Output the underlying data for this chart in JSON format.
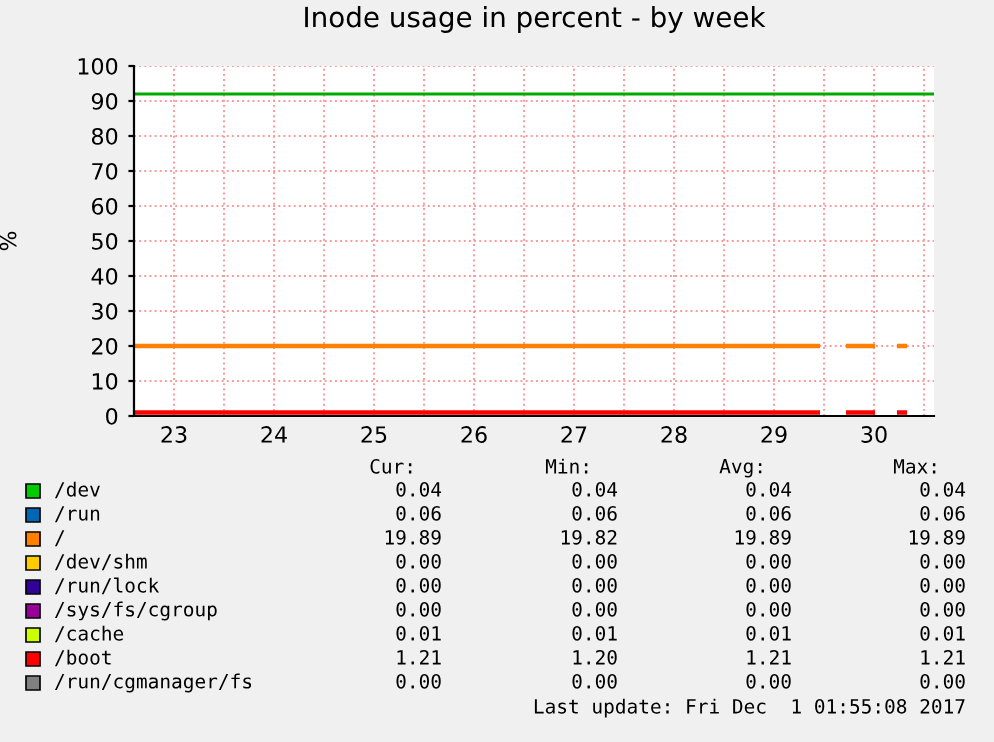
{
  "chart_data": {
    "type": "line",
    "title": "Inode usage in percent - by week",
    "ylabel": "%",
    "x": [
      23.1,
      29.96,
      29.97,
      30.22,
      30.51,
      30.52,
      30.73,
      30.83
    ],
    "xlim": [
      23.1,
      31.1
    ],
    "xticks": [
      {
        "value": 23.5,
        "label": "23"
      },
      {
        "value": 24,
        "label": null
      },
      {
        "value": 24.5,
        "label": "24"
      },
      {
        "value": 25,
        "label": null
      },
      {
        "value": 25.5,
        "label": "25"
      },
      {
        "value": 26,
        "label": null
      },
      {
        "value": 26.5,
        "label": "26"
      },
      {
        "value": 27,
        "label": null
      },
      {
        "value": 27.5,
        "label": "27"
      },
      {
        "value": 28,
        "label": null
      },
      {
        "value": 28.5,
        "label": "28"
      },
      {
        "value": 29,
        "label": null
      },
      {
        "value": 29.5,
        "label": "29"
      },
      {
        "value": 30,
        "label": null
      },
      {
        "value": 30.5,
        "label": "30"
      },
      {
        "value": 31,
        "label": null
      }
    ],
    "ylim": [
      0,
      100
    ],
    "yticks": [
      0,
      10,
      20,
      30,
      40,
      50,
      60,
      70,
      80,
      90,
      100
    ],
    "grid": true,
    "legend": "bottom",
    "marker": "none",
    "line_style": "solid",
    "series": [
      {
        "name": "/dev",
        "color": "#00cc00",
        "values": [
          null,
          null,
          null,
          null,
          null,
          null,
          null,
          null
        ]
      },
      {
        "name": "/run",
        "color": "#0066b3",
        "values": [
          null,
          null,
          null,
          null,
          null,
          null,
          null,
          null
        ]
      },
      {
        "name": "/",
        "color": "#ff8000",
        "values": [
          20,
          20,
          null,
          20,
          20,
          null,
          20,
          20
        ]
      },
      {
        "name": "/dev/shm",
        "color": "#ffcc00",
        "values": [
          null,
          null,
          null,
          null,
          null,
          null,
          null,
          null
        ]
      },
      {
        "name": "/run/lock",
        "color": "#330099",
        "values": [
          null,
          null,
          null,
          null,
          null,
          null,
          null,
          null
        ]
      },
      {
        "name": "/sys/fs/cgroup",
        "color": "#990099",
        "values": [
          null,
          null,
          null,
          null,
          null,
          null,
          null,
          null
        ]
      },
      {
        "name": "/cache",
        "color": "#ccff00",
        "values": [
          null,
          null,
          null,
          null,
          null,
          null,
          null,
          null
        ]
      },
      {
        "name": "/boot",
        "color": "#ff0000",
        "values": [
          1,
          1,
          null,
          1,
          1,
          null,
          1,
          1
        ]
      },
      {
        "name": "/run/cgmanager/fs",
        "color": "#808080",
        "values": [
          null,
          null,
          null,
          null,
          null,
          null,
          null,
          null
        ]
      }
    ],
    "ref_lines": [
      {
        "axis": "y",
        "value": 92,
        "label": null,
        "color": "#00aa00",
        "line_style": "solid"
      }
    ],
    "annotations": [
      "Cur:",
      "Min:",
      "Avg:",
      "Max:",
      "0.04",
      "0.04",
      "0.04",
      "0.04",
      "0.06",
      "0.06",
      "0.06",
      "0.06",
      "19.89",
      "19.82",
      "19.89",
      "19.89",
      "0.00",
      "0.00",
      "0.00",
      "0.00",
      "0.00",
      "0.00",
      "0.00",
      "0.00",
      "0.00",
      "0.00",
      "0.00",
      "0.00",
      "0.01",
      "0.01",
      "0.01",
      "0.01",
      "1.21",
      "1.20",
      "1.21",
      "1.21",
      "0.00",
      "0.00",
      "0.00",
      "0.00",
      "Last update: Fri Dec  1 01:55:08 2017"
    ]
  }
}
